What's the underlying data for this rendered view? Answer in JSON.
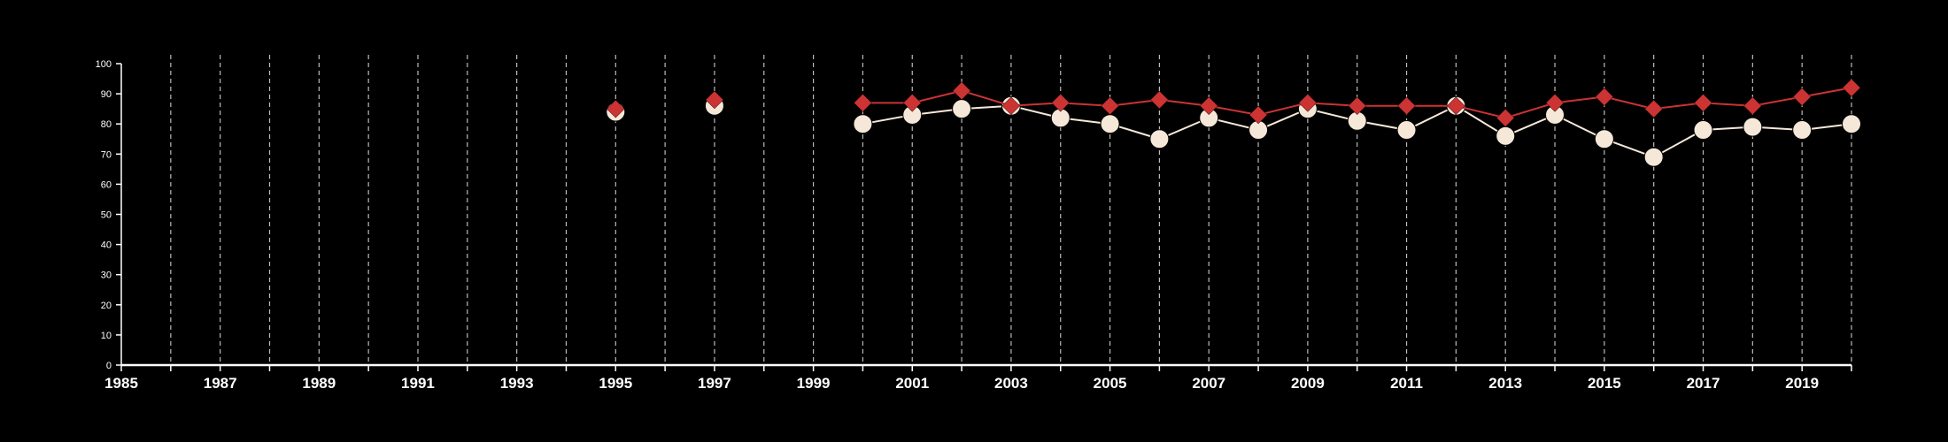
{
  "chart_data": {
    "type": "line",
    "title": "",
    "xlabel": "",
    "ylabel": "",
    "xlim": [
      1985,
      2020
    ],
    "ylim": [
      0,
      100
    ],
    "x_ticks": [
      1985,
      1987,
      1989,
      1991,
      1993,
      1995,
      1997,
      1999,
      2001,
      2003,
      2005,
      2007,
      2009,
      2011,
      2013,
      2015,
      2017,
      2019
    ],
    "y_ticks": [
      0,
      10,
      20,
      30,
      40,
      50,
      60,
      70,
      80,
      90,
      100
    ],
    "grid": "vertical dashed lines at every year",
    "legend": "none",
    "series": [
      {
        "marker": "diamond",
        "color": "#cc3333",
        "points": [
          {
            "x": 1995,
            "y": 85
          },
          {
            "x": 1997,
            "y": 88
          },
          {
            "x": 2000,
            "y": 87
          },
          {
            "x": 2001,
            "y": 87
          },
          {
            "x": 2002,
            "y": 91
          },
          {
            "x": 2003,
            "y": 86
          },
          {
            "x": 2004,
            "y": 87
          },
          {
            "x": 2005,
            "y": 86
          },
          {
            "x": 2006,
            "y": 88
          },
          {
            "x": 2007,
            "y": 86
          },
          {
            "x": 2008,
            "y": 83
          },
          {
            "x": 2009,
            "y": 87
          },
          {
            "x": 2010,
            "y": 86
          },
          {
            "x": 2011,
            "y": 86
          },
          {
            "x": 2012,
            "y": 86
          },
          {
            "x": 2013,
            "y": 82
          },
          {
            "x": 2014,
            "y": 87
          },
          {
            "x": 2015,
            "y": 89
          },
          {
            "x": 2016,
            "y": 85
          },
          {
            "x": 2017,
            "y": 87
          },
          {
            "x": 2018,
            "y": 86
          },
          {
            "x": 2019,
            "y": 89
          },
          {
            "x": 2020,
            "y": 92
          }
        ]
      },
      {
        "marker": "circle",
        "color": "#f6e8d8",
        "points": [
          {
            "x": 1995,
            "y": 84
          },
          {
            "x": 1997,
            "y": 86
          },
          {
            "x": 2000,
            "y": 80
          },
          {
            "x": 2001,
            "y": 83
          },
          {
            "x": 2002,
            "y": 85
          },
          {
            "x": 2003,
            "y": 86
          },
          {
            "x": 2004,
            "y": 82
          },
          {
            "x": 2005,
            "y": 80
          },
          {
            "x": 2006,
            "y": 75
          },
          {
            "x": 2007,
            "y": 82
          },
          {
            "x": 2008,
            "y": 78
          },
          {
            "x": 2009,
            "y": 85
          },
          {
            "x": 2010,
            "y": 81
          },
          {
            "x": 2011,
            "y": 78
          },
          {
            "x": 2012,
            "y": 86
          },
          {
            "x": 2013,
            "y": 76
          },
          {
            "x": 2014,
            "y": 83
          },
          {
            "x": 2015,
            "y": 75
          },
          {
            "x": 2016,
            "y": 69
          },
          {
            "x": 2017,
            "y": 78
          },
          {
            "x": 2018,
            "y": 79
          },
          {
            "x": 2019,
            "y": 78
          },
          {
            "x": 2020,
            "y": 80
          }
        ]
      }
    ]
  }
}
